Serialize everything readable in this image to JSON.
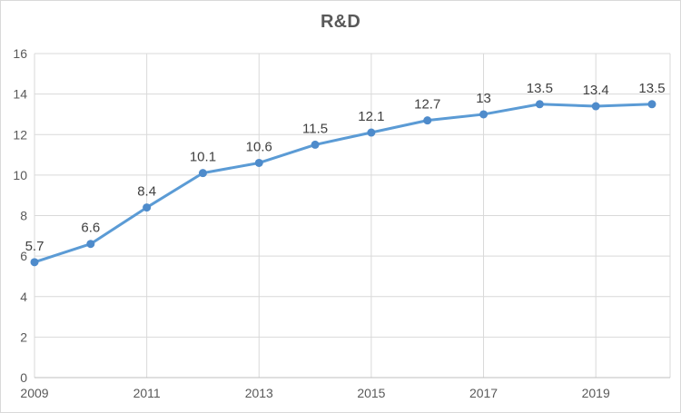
{
  "chart_data": {
    "type": "line",
    "title": "R&D",
    "categories": [
      "2009",
      "2010",
      "2011",
      "2012",
      "2013",
      "2014",
      "2015",
      "2016",
      "2017",
      "2018",
      "2019",
      "2020"
    ],
    "series": [
      {
        "name": "R&D",
        "values": [
          5.7,
          6.6,
          8.4,
          10.1,
          10.6,
          11.5,
          12.1,
          12.7,
          13,
          13.5,
          13.4,
          13.5
        ]
      }
    ],
    "data_labels": [
      "5.7",
      "6.6",
      "8.4",
      "10.1",
      "10.6",
      "11.5",
      "12.1",
      "12.7",
      "13",
      "13.5",
      "13.4",
      "13.5"
    ],
    "ylim": [
      0,
      16
    ],
    "y_ticks": [
      0,
      2,
      4,
      6,
      8,
      10,
      12,
      14,
      16
    ],
    "x_tick_labels": [
      "2009",
      "2011",
      "2013",
      "2015",
      "2017",
      "2019"
    ],
    "grid": true,
    "legend": "none",
    "colors": {
      "line": "#5B9BD5",
      "marker": "#4E8BCB",
      "gridline": "#D9D9D9",
      "axis_line": "#BFBFBF",
      "plot_border": "#D9D9D9",
      "title_text": "#595959",
      "tick_label_text": "#595959",
      "data_label_text": "#404040",
      "background": "#FFFFFF",
      "chart_border": "#D9D9D9"
    }
  }
}
